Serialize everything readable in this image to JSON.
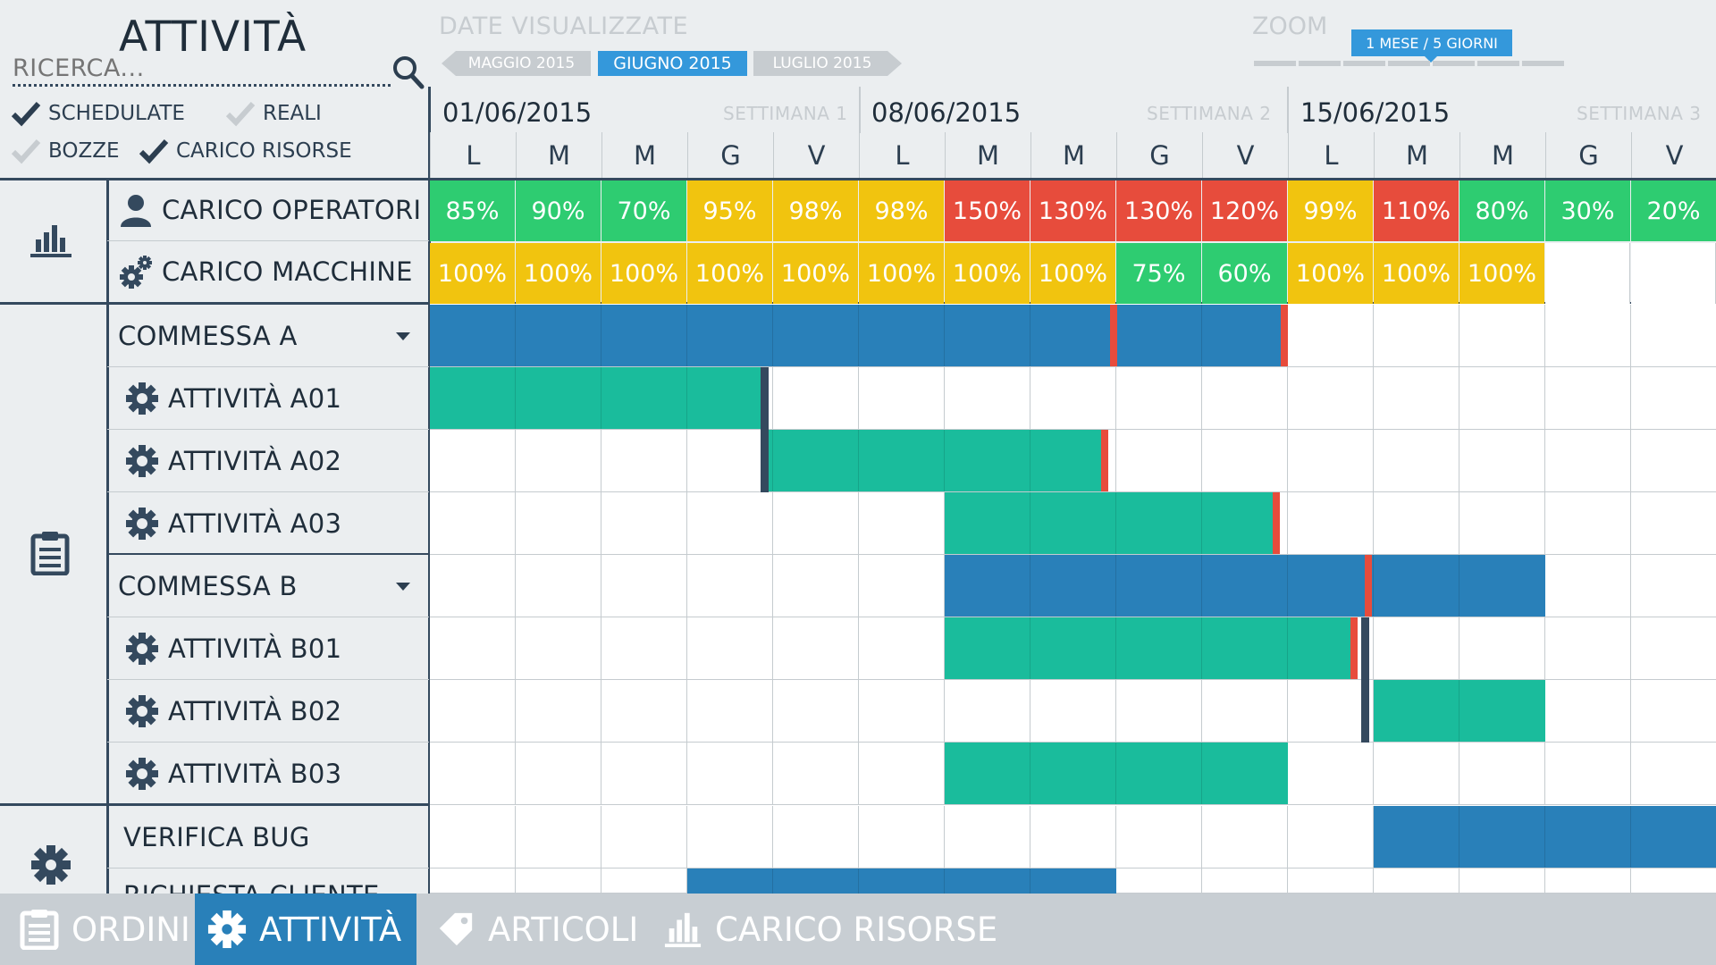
{
  "header": {
    "title": "ATTIVITÀ",
    "search_placeholder": "RICERCA..."
  },
  "filters": [
    {
      "label": "SCHEDULATE",
      "checked": true
    },
    {
      "label": "REALI",
      "checked": false
    },
    {
      "label": "BOZZE",
      "checked": false
    },
    {
      "label": "CARICO RISORSE",
      "checked": true
    }
  ],
  "dates": {
    "label": "DATE VISUALIZZATE",
    "months": [
      "MAGGIO 2015",
      "GIUGNO 2015",
      "LUGLIO 2015"
    ],
    "selected": 1
  },
  "zoom": {
    "label": "ZOOM",
    "value": "1 MESE / 5 GIORNI",
    "segments": 7,
    "selected_segment": 4
  },
  "weeks": [
    {
      "date": "01/06/2015",
      "label": "SETTIMANA 1"
    },
    {
      "date": "08/06/2015",
      "label": "SETTIMANA 2"
    },
    {
      "date": "15/06/2015",
      "label": "SETTIMANA 3"
    }
  ],
  "days": [
    "L",
    "M",
    "M",
    "G",
    "V",
    "L",
    "M",
    "M",
    "G",
    "V",
    "L",
    "M",
    "M",
    "G",
    "V"
  ],
  "load_rows": [
    {
      "label": "CARICO OPERATORI",
      "icon": "user-icon",
      "values": [
        "85%",
        "90%",
        "70%",
        "95%",
        "98%",
        "98%",
        "150%",
        "130%",
        "130%",
        "120%",
        "99%",
        "110%",
        "80%",
        "30%",
        "20%"
      ],
      "levels": [
        "g",
        "g",
        "g",
        "y",
        "y",
        "y",
        "r",
        "r",
        "r",
        "r",
        "y",
        "r",
        "g",
        "g",
        "g"
      ]
    },
    {
      "label": "CARICO MACCHINE",
      "icon": "gears-icon",
      "values": [
        "100%",
        "100%",
        "100%",
        "100%",
        "100%",
        "100%",
        "100%",
        "100%",
        "75%",
        "60%",
        "100%",
        "100%",
        "100%",
        "",
        ""
      ],
      "levels": [
        "y",
        "y",
        "y",
        "y",
        "y",
        "y",
        "y",
        "y",
        "g",
        "g",
        "y",
        "y",
        "y",
        "w",
        "w"
      ]
    }
  ],
  "colors": {
    "green": "#2ecc71",
    "yellow": "#f1c40f",
    "red": "#e74c3c",
    "blue": "#2980b9",
    "teal": "#1abc9c",
    "dark": "#34495e",
    "white": "#ffffff",
    "nav_active": "#2980b9"
  },
  "rows": [
    {
      "label": "COMMESSA A",
      "type": "group",
      "bar": {
        "start": 0,
        "end": 9.99,
        "color": "blue"
      },
      "markers": [
        {
          "at": 8,
          "color": "red"
        },
        {
          "at": 9.99,
          "color": "red"
        }
      ]
    },
    {
      "label": "ATTIVITÀ A01",
      "type": "task",
      "bar": {
        "start": 0,
        "end": 3.9,
        "color": "teal"
      },
      "markers": [
        {
          "at": 3.9,
          "color": "dark"
        }
      ]
    },
    {
      "label": "ATTIVITÀ A02",
      "type": "task",
      "bar": {
        "start": 3.9,
        "end": 7.9,
        "color": "teal"
      },
      "markers": [
        {
          "at": 3.9,
          "color": "dark"
        },
        {
          "at": 7.9,
          "color": "red"
        }
      ]
    },
    {
      "label": "ATTIVITÀ A03",
      "type": "task",
      "bar": {
        "start": 6,
        "end": 9.9,
        "color": "teal"
      },
      "markers": [
        {
          "at": 9.9,
          "color": "red"
        }
      ]
    },
    {
      "label": "COMMESSA B",
      "type": "group",
      "bar": {
        "start": 6,
        "end": 13,
        "color": "blue"
      },
      "markers": [
        {
          "at": 10.97,
          "color": "red"
        }
      ]
    },
    {
      "label": "ATTIVITÀ B01",
      "type": "task",
      "bar": {
        "start": 6,
        "end": 10.8,
        "color": "teal"
      },
      "markers": [
        {
          "at": 10.8,
          "color": "red"
        },
        {
          "at": 10.9,
          "color": "dark"
        }
      ]
    },
    {
      "label": "ATTIVITÀ B02",
      "type": "task",
      "bar": {
        "start": 11,
        "end": 13,
        "color": "teal"
      },
      "markers": [
        {
          "at": 10.9,
          "color": "dark"
        }
      ]
    },
    {
      "label": "ATTIVITÀ B03",
      "type": "task",
      "bar": {
        "start": 6,
        "end": 10,
        "color": "teal"
      },
      "markers": []
    },
    {
      "label": "VERIFICA BUG",
      "type": "other",
      "bar": {
        "start": 11,
        "end": 15,
        "color": "blue"
      },
      "markers": []
    },
    {
      "label": "RICHIESTA CLIENTE",
      "type": "other",
      "bar": {
        "start": 3,
        "end": 8,
        "color": "blue"
      },
      "markers": []
    }
  ],
  "nav": [
    {
      "label": "ORDINI",
      "icon": "clipboard-icon",
      "active": false
    },
    {
      "label": "ATTIVITÀ",
      "icon": "gear-icon",
      "active": true
    },
    {
      "label": "ARTICOLI",
      "icon": "tag-icon",
      "active": false
    },
    {
      "label": "CARICO RISORSE",
      "icon": "bar-chart-icon",
      "active": false
    }
  ]
}
